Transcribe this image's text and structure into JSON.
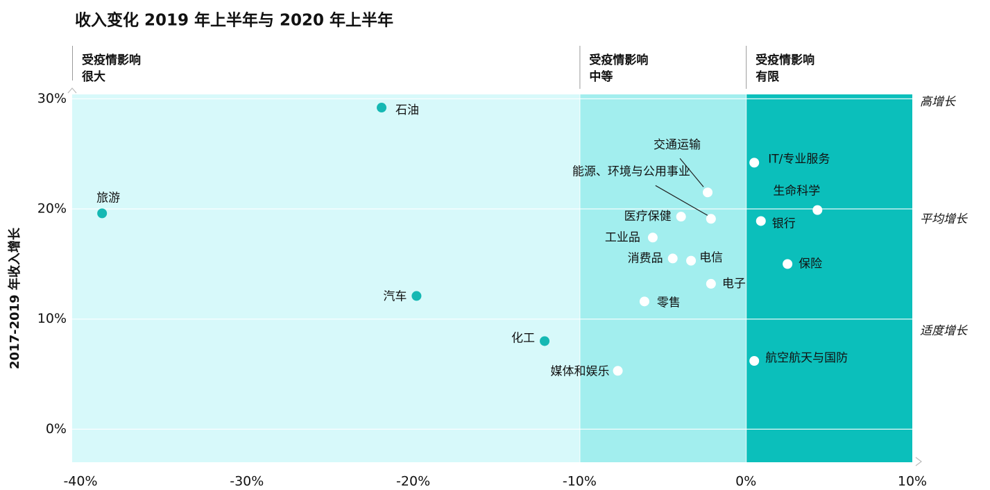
{
  "chart_data": {
    "type": "scatter",
    "title": "收入变化 2019 年上半年与 2020 年上半年",
    "y_label": "2017-2019 年收入增长",
    "xlim": [
      -40.5,
      10
    ],
    "ylim": [
      -3,
      30.4
    ],
    "xticks": [
      {
        "value": -40,
        "label": "-40%"
      },
      {
        "value": -30,
        "label": "-30%"
      },
      {
        "value": -20,
        "label": "-20%"
      },
      {
        "value": -10,
        "label": "-10%"
      },
      {
        "value": 0,
        "label": "0%"
      },
      {
        "value": 10,
        "label": "10%"
      }
    ],
    "yticks": [
      {
        "value": 0,
        "label": "0%"
      },
      {
        "value": 10,
        "label": "10%"
      },
      {
        "value": 20,
        "label": "20%"
      },
      {
        "value": 30,
        "label": "30%"
      }
    ],
    "grid": true,
    "regions": [
      {
        "label": [
          "受疫情影响",
          "很大"
        ],
        "x": [
          -40.5,
          -10
        ],
        "color": "#d7f9fa"
      },
      {
        "label": [
          "受疫情影响",
          "中等"
        ],
        "x": [
          -10,
          0
        ],
        "color": "#a2eeee"
      },
      {
        "label": [
          "受疫情影响",
          "有限"
        ],
        "x": [
          0,
          10
        ],
        "color": "#0bbfbb"
      }
    ],
    "annotations": [
      "高增长",
      "平均增长",
      "适度增长"
    ],
    "points": [
      {
        "label": "石油",
        "x": -21.9,
        "y": 29.2,
        "color": "#15b8b3"
      },
      {
        "label": "旅游",
        "x": -38.7,
        "y": 19.6,
        "color": "#15b8b3"
      },
      {
        "label": "汽车",
        "x": -19.8,
        "y": 12.1,
        "color": "#15b8b3"
      },
      {
        "label": "化工",
        "x": -12.1,
        "y": 8.0,
        "color": "#15b8b3"
      },
      {
        "label": "媒体和娱乐",
        "x": -7.7,
        "y": 5.3,
        "color": "#ffffff"
      },
      {
        "label": "零售",
        "x": -6.1,
        "y": 11.6,
        "color": "#ffffff"
      },
      {
        "label": "工业品",
        "x": -5.6,
        "y": 17.4,
        "color": "#ffffff"
      },
      {
        "label": "医疗保健",
        "x": -3.9,
        "y": 19.3,
        "color": "#ffffff"
      },
      {
        "label": "消费品",
        "x": -4.4,
        "y": 15.5,
        "color": "#ffffff"
      },
      {
        "label": "电信",
        "x": -3.3,
        "y": 15.3,
        "color": "#ffffff"
      },
      {
        "label": "电子",
        "x": -2.1,
        "y": 13.2,
        "color": "#ffffff"
      },
      {
        "label": "交通运输",
        "x": -2.3,
        "y": 21.5,
        "color": "#ffffff"
      },
      {
        "label": "能源、环境与公用事业",
        "x": -2.1,
        "y": 19.1,
        "color": "#ffffff"
      },
      {
        "label": "IT/专业服务",
        "x": 0.5,
        "y": 24.2,
        "color": "#ffffff"
      },
      {
        "label": "生命科学",
        "x": 4.3,
        "y": 19.9,
        "color": "#ffffff"
      },
      {
        "label": "银行",
        "x": 0.9,
        "y": 18.9,
        "color": "#ffffff"
      },
      {
        "label": "保险",
        "x": 2.5,
        "y": 15.0,
        "color": "#ffffff"
      },
      {
        "label": "航空航天与国防",
        "x": 0.5,
        "y": 6.2,
        "color": "#ffffff"
      }
    ]
  }
}
